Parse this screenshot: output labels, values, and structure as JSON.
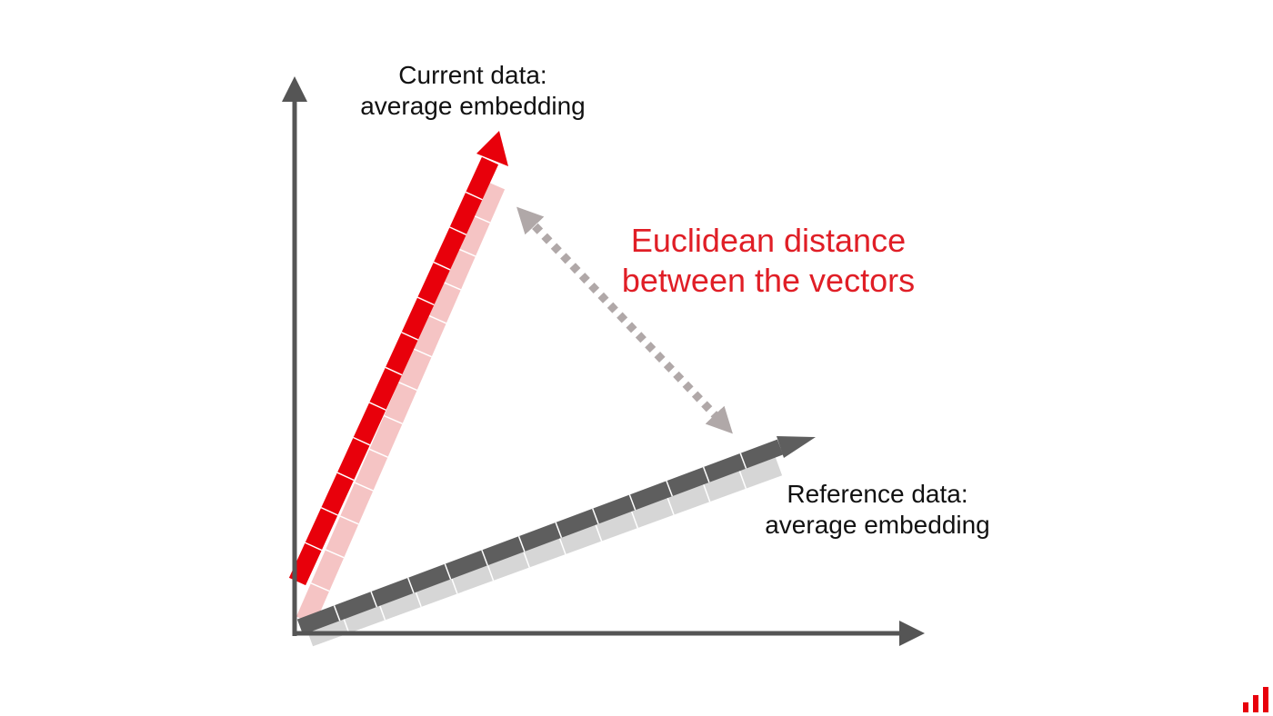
{
  "labels": {
    "current_line1": "Current data:",
    "current_line2": "average embedding",
    "reference_line1": "Reference data:",
    "reference_line2": "average embedding",
    "distance_line1": "Euclidean distance",
    "distance_line2": "between the vectors"
  },
  "colors": {
    "axis": "#555555",
    "current_vector": "#e8000b",
    "current_shadow": "#f5c4c4",
    "reference_vector": "#5e5e5e",
    "reference_shadow": "#d6d6d6",
    "distance_text": "#e01e26",
    "distance_arrow": "#b0a8a8",
    "logo": "#e8000b"
  },
  "icons": {
    "logo": "bar-chart-logo-icon"
  }
}
